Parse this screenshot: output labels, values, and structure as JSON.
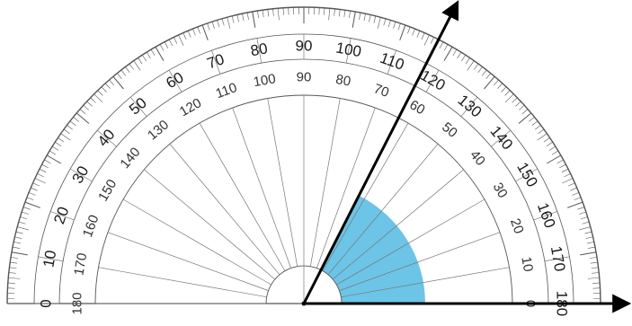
{
  "diagram": {
    "title": "",
    "instrument": "protractor",
    "outer_scale_labels": [
      "0",
      "10",
      "20",
      "30",
      "40",
      "50",
      "60",
      "70",
      "80",
      "90",
      "100",
      "110",
      "120",
      "130",
      "140",
      "150",
      "160",
      "170",
      "180"
    ],
    "inner_scale_labels": [
      "180",
      "170",
      "160",
      "150",
      "140",
      "130",
      "120",
      "110",
      "100",
      "90",
      "80",
      "70",
      "60",
      "50",
      "40",
      "30",
      "20",
      "10",
      "0"
    ],
    "angle": {
      "ray_1_direction_deg": 0,
      "ray_2_direction_deg": 63,
      "highlight_color": "#6cc4e6",
      "line_color": "#000000"
    },
    "colors": {
      "scale": "#555555",
      "text": "#1a1a1a",
      "background": "#ffffff"
    }
  }
}
